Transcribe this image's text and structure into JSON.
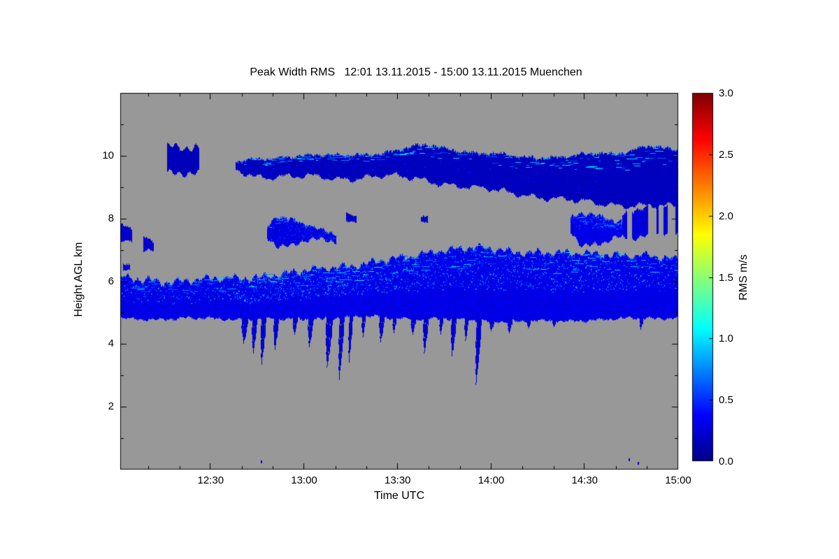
{
  "chart_data": {
    "type": "heatmap",
    "title": "Peak Width RMS   12:01 13.11.2015 - 15:00 13.11.2015 Muenchen",
    "xlabel": "Time UTC",
    "ylabel": "Height AGL km",
    "x_range_minutes": [
      721,
      900
    ],
    "x_ticks": [
      {
        "t": 750,
        "label": "12:30"
      },
      {
        "t": 780,
        "label": "13:00"
      },
      {
        "t": 810,
        "label": "13:30"
      },
      {
        "t": 840,
        "label": "14:00"
      },
      {
        "t": 870,
        "label": "14:30"
      },
      {
        "t": 900,
        "label": "15:00"
      }
    ],
    "x_minor_step_minutes": 10,
    "y_ticks": [
      2,
      4,
      6,
      8,
      10
    ],
    "y_minor_ticks": [
      1,
      3,
      5,
      7,
      9,
      11
    ],
    "ylim": [
      0,
      12
    ],
    "grid": false,
    "background_color": "#989898",
    "colorbar": {
      "label": "RMS m/s",
      "range": [
        0,
        3
      ],
      "ticks": [
        {
          "v": 0,
          "label": "0.0"
        },
        {
          "v": 0.5,
          "label": "0.5"
        },
        {
          "v": 1,
          "label": "1.0"
        },
        {
          "v": 1.5,
          "label": "1.5"
        },
        {
          "v": 2,
          "label": "2.0"
        },
        {
          "v": 2.5,
          "label": "2.5"
        },
        {
          "v": 3,
          "label": "3.0"
        }
      ],
      "stops": [
        {
          "p": 0,
          "color": "#000089"
        },
        {
          "p": 0.125,
          "color": "#0000ff"
        },
        {
          "p": 0.36,
          "color": "#00ffff"
        },
        {
          "p": 0.615,
          "color": "#ffff00"
        },
        {
          "p": 0.875,
          "color": "#ff0000"
        },
        {
          "p": 1,
          "color": "#7f0000"
        }
      ]
    },
    "layers": [
      {
        "name": "upper-cloud-left-patches",
        "value": 0.16,
        "gap": {
          "threshold": 0.2,
          "scale": 34
        },
        "jitter_top": 0.3,
        "jitter_bot": 0.25,
        "points": [
          {
            "t": 721,
            "top": 10.35,
            "bot": 9.35
          },
          {
            "t": 734,
            "top": 10.15,
            "bot": 9.45
          },
          {
            "t": 748,
            "top": 10.3,
            "bot": 9.5
          },
          {
            "t": 756,
            "top": 10.2,
            "bot": 9.6
          }
        ]
      },
      {
        "name": "upper-cloud-band",
        "value": 0.17,
        "jitter_top": 0.15,
        "jitter_bot": 0.22,
        "speckle": {
          "density": 0.5,
          "vmin": 0.3,
          "vmax": 0.5,
          "top_fraction": 0.9
        },
        "points": [
          {
            "t": 758,
            "top": 9.8,
            "bot": 9.55
          },
          {
            "t": 764,
            "top": 9.9,
            "bot": 9.35
          },
          {
            "t": 775,
            "top": 10.0,
            "bot": 9.3
          },
          {
            "t": 790,
            "top": 9.95,
            "bot": 9.2
          },
          {
            "t": 805,
            "top": 10.05,
            "bot": 9.3
          },
          {
            "t": 820,
            "top": 10.3,
            "bot": 9.2
          },
          {
            "t": 835,
            "top": 10.1,
            "bot": 9.0
          },
          {
            "t": 850,
            "top": 10.0,
            "bot": 8.85
          },
          {
            "t": 865,
            "top": 10.05,
            "bot": 8.6
          },
          {
            "t": 880,
            "top": 10.1,
            "bot": 8.45
          },
          {
            "t": 890,
            "top": 10.35,
            "bot": 8.35
          },
          {
            "t": 900,
            "top": 10.1,
            "bot": 8.3
          }
        ]
      },
      {
        "name": "mid-patch-left-a",
        "value": 0.22,
        "jitter_top": 0.12,
        "jitter_bot": 0.1,
        "points": [
          {
            "t": 721,
            "top": 7.8,
            "bot": 7.25
          },
          {
            "t": 724.5,
            "top": 7.65,
            "bot": 7.3
          }
        ]
      },
      {
        "name": "mid-patch-left-b",
        "value": 0.22,
        "jitter_top": 0.12,
        "jitter_bot": 0.1,
        "points": [
          {
            "t": 728.5,
            "top": 7.45,
            "bot": 6.95
          },
          {
            "t": 731.5,
            "top": 7.3,
            "bot": 7.0
          }
        ]
      },
      {
        "name": "mid-speck-left",
        "value": 0.25,
        "jitter_top": 0.06,
        "jitter_bot": 0.05,
        "points": [
          {
            "t": 722,
            "top": 6.55,
            "bot": 6.35
          },
          {
            "t": 724,
            "top": 6.5,
            "bot": 6.35
          }
        ]
      },
      {
        "name": "mid-patch-main",
        "value": 0.28,
        "jitter_top": 0.18,
        "jitter_bot": 0.18,
        "speckle": {
          "density": 1.2,
          "vmin": 0.35,
          "vmax": 0.65,
          "top_fraction": 0.9
        },
        "points": [
          {
            "t": 768,
            "top": 7.7,
            "bot": 7.45
          },
          {
            "t": 771,
            "top": 8.05,
            "bot": 7.2
          },
          {
            "t": 776,
            "top": 8.0,
            "bot": 7.15
          },
          {
            "t": 781,
            "top": 7.9,
            "bot": 7.3
          },
          {
            "t": 786,
            "top": 7.7,
            "bot": 7.35
          },
          {
            "t": 790,
            "top": 7.55,
            "bot": 7.3
          }
        ]
      },
      {
        "name": "mid-patch-small-a",
        "value": 0.2,
        "jitter_top": 0.08,
        "jitter_bot": 0.06,
        "points": [
          {
            "t": 793.5,
            "top": 8.2,
            "bot": 7.9
          },
          {
            "t": 796.5,
            "top": 8.1,
            "bot": 7.9
          }
        ]
      },
      {
        "name": "mid-patch-small-b",
        "value": 0.2,
        "jitter_top": 0.08,
        "jitter_bot": 0.06,
        "points": [
          {
            "t": 817.5,
            "top": 8.05,
            "bot": 7.85
          },
          {
            "t": 819.5,
            "top": 8.0,
            "bot": 7.85
          }
        ]
      },
      {
        "name": "mid-patch-right",
        "value": 0.3,
        "jitter_top": 0.2,
        "jitter_bot": 0.15,
        "speckle": {
          "density": 1.5,
          "vmin": 0.4,
          "vmax": 0.85,
          "top_fraction": 0.45
        },
        "points": [
          {
            "t": 865.5,
            "top": 7.9,
            "bot": 7.5
          },
          {
            "t": 869,
            "top": 8.15,
            "bot": 7.1
          },
          {
            "t": 874,
            "top": 8.05,
            "bot": 7.15
          },
          {
            "t": 879,
            "top": 7.95,
            "bot": 7.35
          },
          {
            "t": 882,
            "top": 7.8,
            "bot": 7.4
          }
        ]
      },
      {
        "name": "mid-right-wedge",
        "value": 0.26,
        "gap": {
          "threshold": -0.05,
          "scale": 16
        },
        "jitter_top": 0.2,
        "jitter_bot": 0.2,
        "points": [
          {
            "t": 882,
            "top": 8.15,
            "bot": 7.35
          },
          {
            "t": 888,
            "top": 8.3,
            "bot": 7.3
          },
          {
            "t": 894,
            "top": 8.3,
            "bot": 7.55
          },
          {
            "t": 900,
            "top": 8.35,
            "bot": 7.45
          }
        ]
      },
      {
        "name": "main-layer",
        "value": 0.3,
        "jitter_top": 0.22,
        "jitter_bot": 0.1,
        "speckle": {
          "density": 2.6,
          "vmin": 0.45,
          "vmax": 1.05,
          "top_fraction": 0.55
        },
        "points": [
          {
            "t": 721,
            "top": 6.05,
            "bot": 4.82
          },
          {
            "t": 735,
            "top": 5.95,
            "bot": 4.8
          },
          {
            "t": 750,
            "top": 6.05,
            "bot": 4.85
          },
          {
            "t": 762,
            "top": 6.15,
            "bot": 4.8
          },
          {
            "t": 775,
            "top": 6.3,
            "bot": 4.8
          },
          {
            "t": 788,
            "top": 6.5,
            "bot": 4.82
          },
          {
            "t": 800,
            "top": 6.6,
            "bot": 4.85
          },
          {
            "t": 812,
            "top": 6.75,
            "bot": 4.8
          },
          {
            "t": 822,
            "top": 6.95,
            "bot": 4.78
          },
          {
            "t": 835,
            "top": 7.0,
            "bot": 4.75
          },
          {
            "t": 848,
            "top": 6.9,
            "bot": 4.72
          },
          {
            "t": 862,
            "top": 6.85,
            "bot": 4.75
          },
          {
            "t": 875,
            "top": 6.9,
            "bot": 4.8
          },
          {
            "t": 888,
            "top": 6.85,
            "bot": 4.82
          },
          {
            "t": 900,
            "top": 6.75,
            "bot": 4.85
          }
        ]
      }
    ],
    "virga": [
      {
        "t": 761,
        "depth": 4.0,
        "w": 2.2
      },
      {
        "t": 764,
        "depth": 3.7,
        "w": 1.8
      },
      {
        "t": 767,
        "depth": 3.35,
        "w": 2.0
      },
      {
        "t": 771,
        "depth": 3.8,
        "w": 1.6
      },
      {
        "t": 777,
        "depth": 4.3,
        "w": 2.0
      },
      {
        "t": 782,
        "depth": 3.9,
        "w": 1.8
      },
      {
        "t": 788,
        "depth": 3.25,
        "w": 2.2
      },
      {
        "t": 792,
        "depth": 2.85,
        "w": 2.0
      },
      {
        "t": 795,
        "depth": 3.4,
        "w": 1.5
      },
      {
        "t": 799,
        "depth": 4.2,
        "w": 1.5
      },
      {
        "t": 805,
        "depth": 4.05,
        "w": 1.8
      },
      {
        "t": 809,
        "depth": 4.35,
        "w": 1.4
      },
      {
        "t": 815,
        "depth": 4.3,
        "w": 1.6
      },
      {
        "t": 819,
        "depth": 3.7,
        "w": 1.8
      },
      {
        "t": 824,
        "depth": 4.3,
        "w": 1.4
      },
      {
        "t": 828,
        "depth": 3.6,
        "w": 1.8
      },
      {
        "t": 832,
        "depth": 4.1,
        "w": 1.5
      },
      {
        "t": 836,
        "depth": 2.7,
        "w": 1.6
      },
      {
        "t": 840,
        "depth": 4.4,
        "w": 1.6
      },
      {
        "t": 846,
        "depth": 4.35,
        "w": 1.8
      },
      {
        "t": 852,
        "depth": 4.5,
        "w": 1.5
      },
      {
        "t": 860,
        "depth": 4.55,
        "w": 1.5
      },
      {
        "t": 888,
        "depth": 4.45,
        "w": 1.2
      }
    ],
    "bottom_specks": [
      {
        "t": 766,
        "h": 0.3
      },
      {
        "t": 884,
        "h": 0.35
      },
      {
        "t": 887,
        "h": 0.25
      }
    ]
  }
}
